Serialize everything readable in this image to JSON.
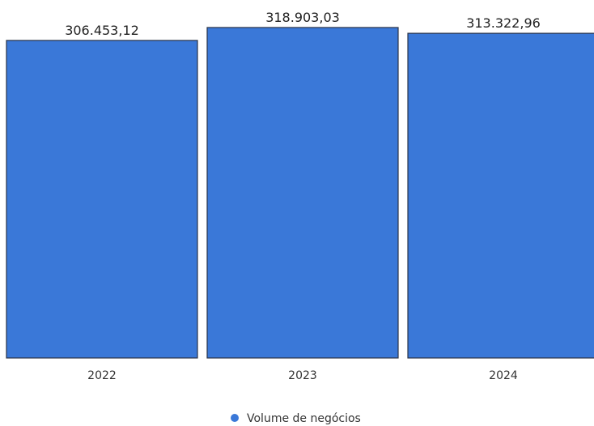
{
  "chart_data": {
    "type": "bar",
    "categories": [
      "2022",
      "2023",
      "2024"
    ],
    "series": [
      {
        "name": "Volume de negócios",
        "values": [
          306453.12,
          318903.03,
          313322.96
        ],
        "value_labels": [
          "306.453,12",
          "318.903,03",
          "313.322,96"
        ],
        "color": "#3a78d8"
      }
    ],
    "title": "",
    "xlabel": "",
    "ylabel": "",
    "ylim": [
      0,
      322000
    ],
    "grid": false,
    "legend": "bottom-center"
  }
}
